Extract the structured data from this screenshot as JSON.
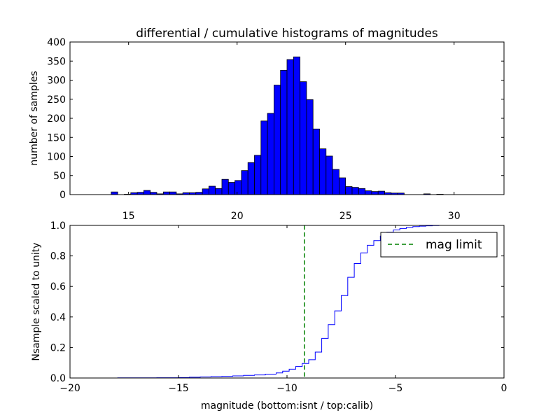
{
  "colors": {
    "bar_fill": "#0000ff",
    "bar_edge": "#000000",
    "step_line": "#0000ff",
    "limit_line": "#008000"
  },
  "chart_data": [
    {
      "type": "bar",
      "title": "differential / cumulative histograms of magnitudes",
      "xlabel": "",
      "ylabel": "number of samples",
      "xlim": [
        12.3,
        32.3
      ],
      "ylim": [
        0,
        400
      ],
      "xticks": [
        15,
        20,
        25,
        30
      ],
      "yticks": [
        0,
        50,
        100,
        150,
        200,
        250,
        300,
        350,
        400
      ],
      "bin_start": 14.2,
      "bin_width": 0.3,
      "values": [
        7,
        0,
        1,
        5,
        6,
        11,
        6,
        2,
        7,
        7,
        2,
        5,
        5,
        6,
        15,
        22,
        16,
        40,
        32,
        37,
        63,
        84,
        103,
        193,
        213,
        287,
        326,
        354,
        361,
        296,
        249,
        172,
        120,
        101,
        66,
        44,
        21,
        19,
        16,
        10,
        8,
        9,
        5,
        4,
        4,
        0,
        0,
        0,
        2,
        0,
        1
      ],
      "grid": false
    },
    {
      "type": "line",
      "xlabel": "magnitude (bottom:isnt / top:calib)",
      "ylabel": "Nsample scaled to unity",
      "xlim": [
        -20,
        0
      ],
      "ylim": [
        0,
        1.0
      ],
      "xticks": [
        -20,
        -15,
        -10,
        -5,
        0
      ],
      "yticks": [
        0.0,
        0.2,
        0.4,
        0.6,
        0.8,
        1.0
      ],
      "step_x": [
        -20.0,
        -17.8,
        -16.0,
        -15.0,
        -14.5,
        -14.0,
        -13.5,
        -13.0,
        -12.5,
        -12.0,
        -11.5,
        -11.0,
        -10.5,
        -10.2,
        -9.9,
        -9.6,
        -9.3,
        -9.0,
        -8.7,
        -8.4,
        -8.1,
        -7.8,
        -7.5,
        -7.2,
        -6.9,
        -6.6,
        -6.3,
        -6.0,
        -5.7,
        -5.4,
        -5.1,
        -4.8,
        -4.5,
        -4.2,
        -3.9,
        -3.6,
        -3.3,
        -3.0,
        0.0
      ],
      "step_y": [
        0.0,
        0.001,
        0.002,
        0.003,
        0.005,
        0.007,
        0.009,
        0.011,
        0.014,
        0.017,
        0.02,
        0.025,
        0.033,
        0.045,
        0.058,
        0.075,
        0.095,
        0.12,
        0.17,
        0.26,
        0.35,
        0.44,
        0.54,
        0.66,
        0.75,
        0.82,
        0.87,
        0.9,
        0.93,
        0.955,
        0.97,
        0.98,
        0.987,
        0.992,
        0.995,
        0.997,
        0.999,
        1.0,
        1.0
      ],
      "limit_x": -9.2,
      "legend": {
        "label": "mag limit",
        "position": "upper right"
      },
      "grid": false
    }
  ]
}
